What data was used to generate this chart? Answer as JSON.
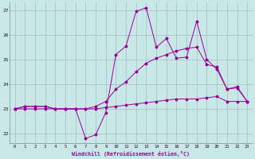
{
  "xlabel": "Windchill (Refroidissement éolien,°C)",
  "background_color": "#c8e8e8",
  "grid_color": "#aabbbb",
  "line_color": "#990099",
  "xlim": [
    -0.5,
    23.5
  ],
  "ylim": [
    21.6,
    27.3
  ],
  "yticks": [
    22,
    23,
    24,
    25,
    26,
    27
  ],
  "xticks": [
    0,
    1,
    2,
    3,
    4,
    5,
    6,
    7,
    8,
    9,
    10,
    11,
    12,
    13,
    14,
    15,
    16,
    17,
    18,
    19,
    20,
    21,
    22,
    23
  ],
  "hours": [
    0,
    1,
    2,
    3,
    4,
    5,
    6,
    7,
    8,
    9,
    10,
    11,
    12,
    13,
    14,
    15,
    16,
    17,
    18,
    19,
    20,
    21,
    22,
    23
  ],
  "windchill": [
    23.0,
    23.1,
    23.1,
    23.1,
    23.0,
    23.0,
    23.0,
    21.8,
    21.95,
    22.85,
    25.2,
    25.55,
    26.95,
    27.1,
    25.5,
    25.85,
    25.05,
    25.1,
    26.55,
    25.0,
    24.6,
    23.8,
    23.9,
    23.3
  ],
  "temp": [
    23.0,
    23.1,
    23.1,
    23.1,
    23.0,
    23.0,
    23.0,
    23.0,
    23.1,
    23.3,
    23.8,
    24.1,
    24.5,
    24.85,
    25.05,
    25.2,
    25.35,
    25.45,
    25.5,
    24.8,
    24.7,
    23.8,
    23.85,
    23.3
  ],
  "feels_like": [
    23.0,
    23.0,
    23.0,
    23.0,
    23.0,
    23.0,
    23.0,
    23.0,
    23.0,
    23.05,
    23.1,
    23.15,
    23.2,
    23.25,
    23.3,
    23.35,
    23.4,
    23.4,
    23.4,
    23.45,
    23.5,
    23.3,
    23.3,
    23.3
  ]
}
